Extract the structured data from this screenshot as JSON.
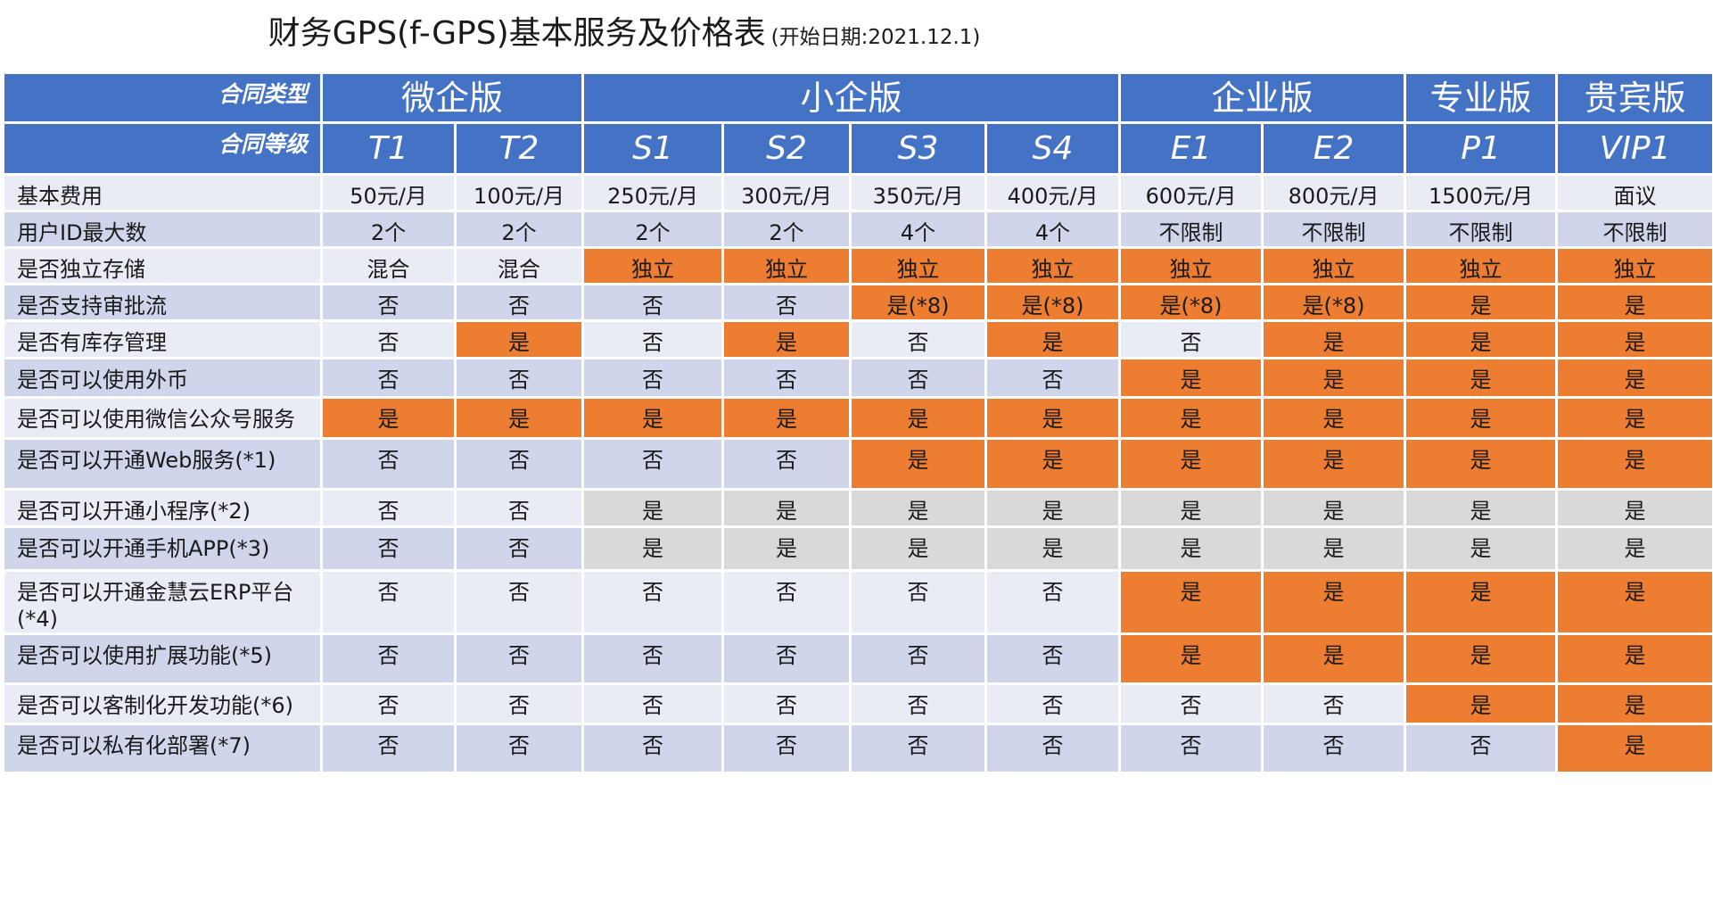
{
  "title": {
    "main": "财务GPS(f-GPS)基本服务及价格表",
    "sub": "(开始日期:2021.12.1)"
  },
  "colors": {
    "header_blue": "#4472c4",
    "lavender": "#cfd5ea",
    "pale": "#e9ebf5",
    "orange": "#ed7d31",
    "gray": "#d9d9d9"
  },
  "table": {
    "group_row_label": "合同类型",
    "level_row_label": "合同等级",
    "groups": [
      {
        "label": "微企版",
        "span": 2
      },
      {
        "label": "小企版",
        "span": 4
      },
      {
        "label": "企业版",
        "span": 2
      },
      {
        "label": "专业版",
        "span": 1
      },
      {
        "label": "贵宾版",
        "span": 1
      }
    ],
    "levels": [
      "T1",
      "T2",
      "S1",
      "S2",
      "S3",
      "S4",
      "E1",
      "E2",
      "P1",
      "VIP1"
    ],
    "rows": [
      {
        "label": "基本费用",
        "default": "pale",
        "cells": [
          "50元/月",
          "100元/月",
          "250元/月",
          "300元/月",
          "350元/月",
          "400元/月",
          "600元/月",
          "800元/月",
          "1500元/月",
          "面议"
        ]
      },
      {
        "label": "用户ID最大数",
        "default": "lavender",
        "cells": [
          "2个",
          "2个",
          "2个",
          "2个",
          "4个",
          "4个",
          "不限制",
          "不限制",
          "不限制",
          "不限制"
        ]
      },
      {
        "label": "是否独立存储",
        "default": "pale",
        "cells": [
          "混合",
          "混合",
          "独立",
          "独立",
          "独立",
          "独立",
          "独立",
          "独立",
          "独立",
          "独立"
        ],
        "highlight": [
          2,
          3,
          4,
          5,
          6,
          7,
          8,
          9
        ]
      },
      {
        "label": "是否支持审批流",
        "default": "lavender",
        "cells": [
          "否",
          "否",
          "否",
          "否",
          "是(*8)",
          "是(*8)",
          "是(*8)",
          "是(*8)",
          "是",
          "是"
        ],
        "highlight": [
          4,
          5,
          6,
          7,
          8,
          9
        ]
      },
      {
        "label": "是否有库存管理",
        "default": "pale",
        "cells": [
          "否",
          "是",
          "否",
          "是",
          "否",
          "是",
          "否",
          "是",
          "是",
          "是"
        ],
        "highlight": [
          1,
          3,
          5,
          7,
          8,
          9
        ]
      },
      {
        "label": "是否可以使用外币",
        "default": "lavender",
        "cells": [
          "否",
          "否",
          "否",
          "否",
          "否",
          "否",
          "是",
          "是",
          "是",
          "是"
        ],
        "highlight": [
          6,
          7,
          8,
          9
        ]
      },
      {
        "label": "是否可以使用微信公众号服务",
        "default": "pale",
        "cells": [
          "是",
          "是",
          "是",
          "是",
          "是",
          "是",
          "是",
          "是",
          "是",
          "是"
        ],
        "highlight": [
          0,
          1,
          2,
          3,
          4,
          5,
          6,
          7,
          8,
          9
        ]
      },
      {
        "label": "是否可以开通Web服务(*1)",
        "default": "lavender",
        "cells": [
          "否",
          "否",
          "否",
          "否",
          "是",
          "是",
          "是",
          "是",
          "是",
          "是"
        ],
        "highlight": [
          4,
          5,
          6,
          7,
          8,
          9
        ]
      },
      {
        "label": "是否可以开通小程序(*2)",
        "default": "pale",
        "cells": [
          "否",
          "否",
          "是",
          "是",
          "是",
          "是",
          "是",
          "是",
          "是",
          "是"
        ],
        "gray": [
          2,
          3,
          4,
          5,
          6,
          7,
          8,
          9
        ]
      },
      {
        "label": "是否可以开通手机APP(*3)",
        "default": "lavender",
        "cells": [
          "否",
          "否",
          "是",
          "是",
          "是",
          "是",
          "是",
          "是",
          "是",
          "是"
        ],
        "gray": [
          2,
          3,
          4,
          5,
          6,
          7,
          8,
          9
        ]
      },
      {
        "label": "是否可以开通金慧云ERP平台(*4)",
        "default": "pale",
        "cells": [
          "否",
          "否",
          "否",
          "否",
          "否",
          "否",
          "是",
          "是",
          "是",
          "是"
        ],
        "highlight": [
          6,
          7,
          8,
          9
        ]
      },
      {
        "label": "是否可以使用扩展功能(*5)",
        "default": "lavender",
        "cells": [
          "否",
          "否",
          "否",
          "否",
          "否",
          "否",
          "是",
          "是",
          "是",
          "是"
        ],
        "highlight": [
          6,
          7,
          8,
          9
        ]
      },
      {
        "label": "是否可以客制化开发功能(*6)",
        "default": "pale",
        "cells": [
          "否",
          "否",
          "否",
          "否",
          "否",
          "否",
          "否",
          "否",
          "是",
          "是"
        ],
        "highlight": [
          8,
          9
        ]
      },
      {
        "label": "是否可以私有化部署(*7)",
        "default": "lavender",
        "cells": [
          "否",
          "否",
          "否",
          "否",
          "否",
          "否",
          "否",
          "否",
          "否",
          "是"
        ],
        "highlight": [
          9
        ]
      }
    ]
  }
}
